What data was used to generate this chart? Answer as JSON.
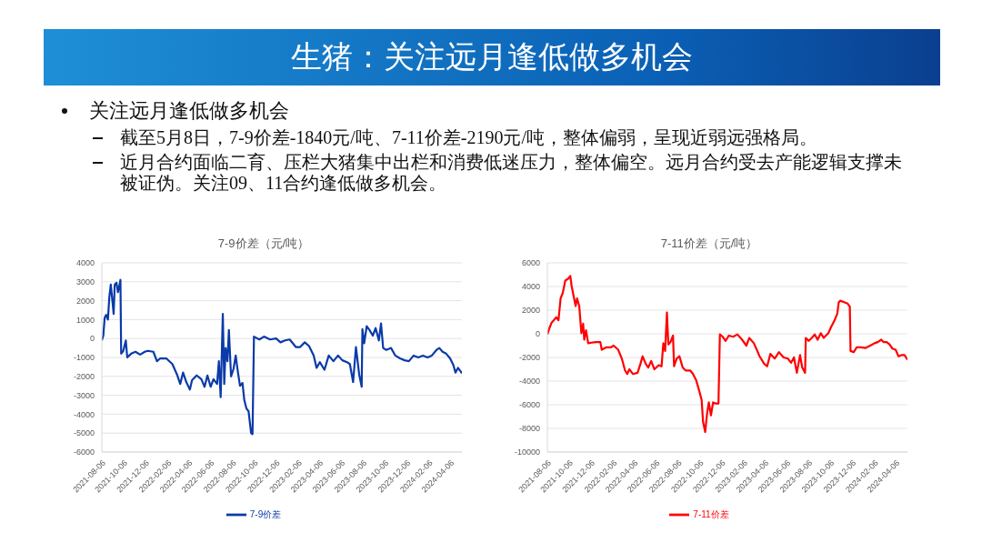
{
  "chart_data": [
    {
      "type": "other",
      "title": "生猪：关注远月逢低做多机会",
      "annotations": [
        "关注远月逢低做多机会",
        "截至5月8日，7-9价差-1840元/吨、7-11价差-2190元/吨，整体偏弱，呈现近弱远强格局。",
        "近月合约面临二育、压栏大猪集中出栏和消费低迷压力，整体偏空。远月合约受去产能逻辑支撑未被证伪。关注09、11合约逢低做多机会。"
      ]
    },
    {
      "type": "line",
      "title": "7-9价差（元/吨）",
      "legend": "bottom",
      "grid": "y",
      "x": [
        "2021-08-06",
        "2021-08-10",
        "2021-08-14",
        "2021-08-18",
        "2021-08-23",
        "2021-08-27",
        "2021-08-31",
        "2021-09-05",
        "2021-09-08",
        "2021-09-11",
        "2021-09-16",
        "2021-09-20",
        "2021-09-23",
        "2021-09-27",
        "2021-09-29",
        "2021-10-05",
        "2021-10-12",
        "2021-10-16",
        "2021-10-27",
        "2021-11-08",
        "2021-11-21",
        "2021-12-04",
        "2021-12-12",
        "2021-12-28",
        "2022-01-07",
        "2022-01-16",
        "2022-02-02",
        "2022-02-19",
        "2022-03-04",
        "2022-03-13",
        "2022-03-21",
        "2022-03-30",
        "2022-04-09",
        "2022-04-15",
        "2022-04-28",
        "2022-05-11",
        "2022-05-20",
        "2022-05-28",
        "2022-06-06",
        "2022-06-14",
        "2022-06-24",
        "2022-06-29",
        "2022-07-04",
        "2022-07-10",
        "2022-07-14",
        "2022-07-18",
        "2022-07-23",
        "2022-07-27",
        "2022-08-02",
        "2022-08-09",
        "2022-08-15",
        "2022-08-21",
        "2022-08-27",
        "2022-09-03",
        "2022-09-08",
        "2022-09-14",
        "2022-09-20",
        "2022-09-27",
        "2022-10-01",
        "2022-10-05",
        "2022-10-20",
        "2022-11-02",
        "2022-11-19",
        "2022-12-06",
        "2022-12-18",
        "2022-12-31",
        "2023-01-13",
        "2023-01-30",
        "2023-02-11",
        "2023-02-24",
        "2023-03-08",
        "2023-03-21",
        "2023-03-29",
        "2023-04-07",
        "2023-04-20",
        "2023-05-02",
        "2023-05-15",
        "2023-05-28",
        "2023-06-09",
        "2023-06-22",
        "2023-06-30",
        "2023-07-09",
        "2023-07-17",
        "2023-07-26",
        "2023-08-02",
        "2023-08-04",
        "2023-08-09",
        "2023-08-16",
        "2023-08-24",
        "2023-09-02",
        "2023-09-10",
        "2023-09-19",
        "2023-09-25",
        "2023-10-01",
        "2023-10-10",
        "2023-10-23",
        "2023-11-04",
        "2023-11-17",
        "2023-11-30",
        "2023-12-12",
        "2023-12-25",
        "2024-01-07",
        "2024-01-20",
        "2024-02-02",
        "2024-02-14",
        "2024-02-27",
        "2024-03-06",
        "2024-03-15",
        "2024-03-25",
        "2024-04-05",
        "2024-04-14",
        "2024-04-20",
        "2024-04-27",
        "2024-05-05",
        "2024-05-08"
      ],
      "series": [
        {
          "name": "7-9价差",
          "color": "#0a3aa8",
          "values": [
            -100,
            150,
            1100,
            1250,
            1000,
            2200,
            2850,
            1900,
            1300,
            2850,
            2950,
            2450,
            2700,
            3100,
            -800,
            -650,
            -100,
            -1000,
            -800,
            -700,
            -850,
            -700,
            -650,
            -700,
            -1200,
            -1050,
            -1050,
            -1350,
            -1900,
            -2400,
            -1800,
            -2300,
            -2700,
            -2200,
            -1950,
            -2150,
            -2550,
            -1950,
            -2550,
            -2150,
            -2400,
            -1200,
            -3100,
            1300,
            -2400,
            -500,
            -1200,
            450,
            -2000,
            -1600,
            -900,
            -1750,
            -2500,
            -2350,
            -3250,
            -3700,
            -3850,
            -5000,
            -5050,
            100,
            -50,
            100,
            -50,
            0,
            -200,
            -100,
            -50,
            -450,
            -450,
            -200,
            -400,
            -900,
            -1550,
            -1250,
            -1650,
            -900,
            -1200,
            -900,
            -1150,
            -1250,
            -1350,
            -2300,
            -450,
            -1900,
            -2550,
            500,
            -250,
            650,
            450,
            150,
            550,
            -100,
            800,
            -500,
            -600,
            -500,
            -900,
            -1050,
            -1150,
            -1200,
            -900,
            -1000,
            -900,
            -1000,
            -900,
            -600,
            -500,
            -700,
            -800,
            -1050,
            -1400,
            -1800,
            -1550,
            -1750,
            -1840
          ]
        }
      ],
      "xlim": [
        "2021-08-06",
        "2024-05-08"
      ],
      "xticks": [
        "2021-08-06",
        "2021-10-06",
        "2021-12-06",
        "2022-02-06",
        "2022-04-06",
        "2022-06-06",
        "2022-08-06",
        "2022-10-06",
        "2022-12-06",
        "2023-02-06",
        "2023-04-06",
        "2023-06-06",
        "2023-08-06",
        "2023-10-06",
        "2023-12-06",
        "2024-02-06",
        "2024-04-06"
      ],
      "ylim": [
        -6000,
        4000
      ],
      "yticks": [
        -6000,
        -5000,
        -4000,
        -3000,
        -2000,
        -1000,
        0,
        1000,
        2000,
        3000,
        4000
      ]
    },
    {
      "type": "line",
      "title": "7-11价差（元/吨）",
      "legend": "bottom",
      "grid": "y",
      "x": [
        "2021-08-06",
        "2021-08-12",
        "2021-08-18",
        "2021-08-24",
        "2021-08-31",
        "2021-09-06",
        "2021-09-12",
        "2021-09-18",
        "2021-09-25",
        "2021-10-03",
        "2021-10-09",
        "2021-10-13",
        "2021-10-19",
        "2021-10-24",
        "2021-10-28",
        "2021-11-03",
        "2021-11-09",
        "2021-11-14",
        "2021-11-17",
        "2021-11-22",
        "2021-11-28",
        "2021-12-07",
        "2021-12-19",
        "2022-01-01",
        "2022-01-05",
        "2022-01-17",
        "2022-01-30",
        "2022-02-07",
        "2022-02-20",
        "2022-03-02",
        "2022-03-11",
        "2022-03-17",
        "2022-03-23",
        "2022-04-02",
        "2022-04-15",
        "2022-04-23",
        "2022-04-29",
        "2022-05-08",
        "2022-05-15",
        "2022-05-23",
        "2022-06-01",
        "2022-06-13",
        "2022-06-21",
        "2022-06-26",
        "2022-07-01",
        "2022-07-06",
        "2022-07-10",
        "2022-07-16",
        "2022-07-23",
        "2022-07-26",
        "2022-08-02",
        "2022-08-10",
        "2022-08-19",
        "2022-08-27",
        "2022-09-09",
        "2022-09-17",
        "2022-09-26",
        "2022-10-04",
        "2022-10-11",
        "2022-10-15",
        "2022-10-21",
        "2022-10-26",
        "2022-10-31",
        "2022-11-06",
        "2022-11-12",
        "2022-11-20",
        "2022-11-27",
        "2022-12-01",
        "2022-12-09",
        "2022-12-17",
        "2022-12-26",
        "2023-01-07",
        "2023-01-19",
        "2023-02-01",
        "2023-02-13",
        "2023-02-21",
        "2023-03-06",
        "2023-03-14",
        "2023-03-22",
        "2023-04-04",
        "2023-04-12",
        "2023-04-21",
        "2023-05-03",
        "2023-05-15",
        "2023-05-28",
        "2023-06-09",
        "2023-06-18",
        "2023-06-26",
        "2023-07-04",
        "2023-07-13",
        "2023-07-19",
        "2023-07-27",
        "2023-07-29",
        "2023-08-06",
        "2023-08-15",
        "2023-08-23",
        "2023-08-31",
        "2023-09-09",
        "2023-09-17",
        "2023-09-30",
        "2023-10-08",
        "2023-10-16",
        "2023-10-25",
        "2023-10-29",
        "2023-11-02",
        "2023-11-15",
        "2023-11-23",
        "2023-11-29",
        "2023-12-01",
        "2023-12-10",
        "2023-12-18",
        "2023-12-31",
        "2024-01-12",
        "2024-01-25",
        "2024-02-06",
        "2024-02-15",
        "2024-02-25",
        "2024-03-02",
        "2024-03-11",
        "2024-03-19",
        "2024-03-27",
        "2024-04-05",
        "2024-04-13",
        "2024-04-21",
        "2024-04-30",
        "2024-05-08"
      ],
      "series": [
        {
          "name": "7-11价差",
          "color": "#ff0000",
          "values": [
            -50,
            500,
            950,
            1150,
            1400,
            1150,
            3000,
            3450,
            4500,
            4650,
            4900,
            4000,
            3100,
            2350,
            3000,
            2350,
            50,
            850,
            -500,
            300,
            -800,
            -750,
            -700,
            -700,
            -1350,
            -1150,
            -1150,
            -1000,
            -1350,
            -2100,
            -3100,
            -3400,
            -3000,
            -3400,
            -3300,
            -2550,
            -1900,
            -2550,
            -2850,
            -2300,
            -3000,
            -2650,
            -2750,
            -800,
            -1450,
            1800,
            -900,
            -700,
            -150,
            -2750,
            -2100,
            -1900,
            -2850,
            -3100,
            -3100,
            -3400,
            -3950,
            -4800,
            -5600,
            -7450,
            -8300,
            -6800,
            -5800,
            -6900,
            -5800,
            -5900,
            -5900,
            -50,
            -250,
            -600,
            -150,
            -250,
            -50,
            -500,
            -1000,
            -350,
            -800,
            -1350,
            -1900,
            -2550,
            -2750,
            -1700,
            -2100,
            -1550,
            -2000,
            -2100,
            -2450,
            -2000,
            -3300,
            -1800,
            -2850,
            -3300,
            -350,
            -600,
            -350,
            -50,
            -500,
            50,
            -350,
            50,
            600,
            1050,
            1700,
            2650,
            2800,
            2650,
            2550,
            2300,
            -1450,
            -1550,
            -1150,
            -1150,
            -1200,
            -1000,
            -800,
            -700,
            -500,
            -700,
            -700,
            -900,
            -1250,
            -1350,
            -1900,
            -1800,
            -1800,
            -2190
          ]
        }
      ],
      "xlim": [
        "2021-08-06",
        "2024-05-08"
      ],
      "xticks": [
        "2021-08-06",
        "2021-10-06",
        "2021-12-06",
        "2022-02-06",
        "2022-04-06",
        "2022-06-06",
        "2022-08-06",
        "2022-10-06",
        "2022-12-06",
        "2023-02-06",
        "2023-04-06",
        "2023-06-06",
        "2023-08-06",
        "2023-10-06",
        "2023-12-06",
        "2024-02-06",
        "2024-04-06"
      ],
      "ylim": [
        -10000,
        6000
      ],
      "yticks": [
        -10000,
        -8000,
        -6000,
        -4000,
        -2000,
        0,
        2000,
        4000,
        6000
      ]
    }
  ]
}
